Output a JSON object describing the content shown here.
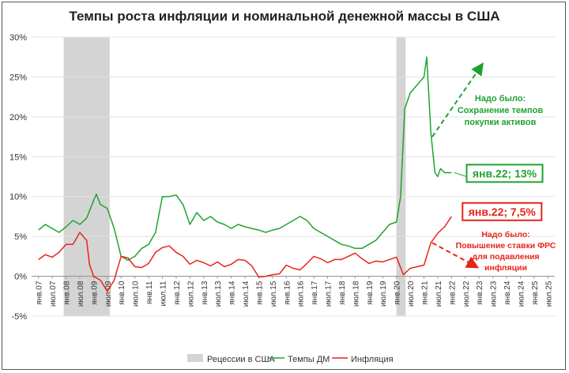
{
  "chart_data": {
    "type": "line",
    "title": "Темпы роста инфляции и номинальной денежной массы в США",
    "y_ticks": [
      "30%",
      "25%",
      "20%",
      "15%",
      "10%",
      "5%",
      "0%",
      "-5%"
    ],
    "ylim": [
      -5,
      30
    ],
    "x_labels": [
      "янв.07",
      "июл.07",
      "янв.08",
      "июл.08",
      "янв.09",
      "июл.09",
      "янв.10",
      "июл.10",
      "янв.11",
      "июл.11",
      "янв.12",
      "июл.12",
      "янв.13",
      "июл.13",
      "янв.14",
      "июл.14",
      "янв.15",
      "июл.15",
      "янв.16",
      "июл.16",
      "янв.17",
      "июл.17",
      "янв.18",
      "июл.18",
      "янв.19",
      "июл.19",
      "янв.20",
      "июл.20",
      "янв.21",
      "июл.21",
      "янв.22",
      "июл.22",
      "янв.23",
      "июл.23",
      "янв.24",
      "июл.24",
      "янв.25",
      "июл.25"
    ],
    "grid": true,
    "legend_position": "bottom",
    "colors": {
      "money": "#1fa32f",
      "inflation": "#e8231a",
      "recession": "#d4d4d4"
    },
    "recessions": [
      [
        "янв.08",
        "июл.09"
      ],
      [
        "фев.20",
        "апр.20"
      ]
    ],
    "series": [
      {
        "name": "Темпы ДМ",
        "points": [
          [
            2007.0,
            5.8
          ],
          [
            2007.25,
            6.5
          ],
          [
            2007.5,
            6.0
          ],
          [
            2007.75,
            5.5
          ],
          [
            2008.0,
            6.2
          ],
          [
            2008.25,
            7.0
          ],
          [
            2008.5,
            6.5
          ],
          [
            2008.75,
            7.3
          ],
          [
            2009.0,
            9.5
          ],
          [
            2009.1,
            10.3
          ],
          [
            2009.25,
            9.0
          ],
          [
            2009.5,
            8.5
          ],
          [
            2009.75,
            6.0
          ],
          [
            2010.0,
            2.5
          ],
          [
            2010.25,
            2.0
          ],
          [
            2010.5,
            2.5
          ],
          [
            2010.75,
            3.5
          ],
          [
            2011.0,
            4.0
          ],
          [
            2011.25,
            5.5
          ],
          [
            2011.5,
            10.0
          ],
          [
            2011.75,
            10.0
          ],
          [
            2012.0,
            10.2
          ],
          [
            2012.25,
            9.0
          ],
          [
            2012.5,
            6.5
          ],
          [
            2012.75,
            8.0
          ],
          [
            2013.0,
            7.0
          ],
          [
            2013.25,
            7.5
          ],
          [
            2013.5,
            6.8
          ],
          [
            2013.75,
            6.5
          ],
          [
            2014.0,
            6.0
          ],
          [
            2014.25,
            6.5
          ],
          [
            2014.5,
            6.2
          ],
          [
            2014.75,
            6.0
          ],
          [
            2015.0,
            5.8
          ],
          [
            2015.25,
            5.5
          ],
          [
            2015.5,
            5.8
          ],
          [
            2015.75,
            6.0
          ],
          [
            2016.0,
            6.5
          ],
          [
            2016.25,
            7.0
          ],
          [
            2016.5,
            7.5
          ],
          [
            2016.75,
            7.0
          ],
          [
            2017.0,
            6.0
          ],
          [
            2017.25,
            5.5
          ],
          [
            2017.5,
            5.0
          ],
          [
            2017.75,
            4.5
          ],
          [
            2018.0,
            4.0
          ],
          [
            2018.25,
            3.8
          ],
          [
            2018.5,
            3.5
          ],
          [
            2018.75,
            3.5
          ],
          [
            2019.0,
            4.0
          ],
          [
            2019.25,
            4.5
          ],
          [
            2019.5,
            5.5
          ],
          [
            2019.75,
            6.5
          ],
          [
            2020.0,
            6.8
          ],
          [
            2020.15,
            10.0
          ],
          [
            2020.3,
            21.0
          ],
          [
            2020.5,
            23.0
          ],
          [
            2020.75,
            24.0
          ],
          [
            2021.0,
            25.0
          ],
          [
            2021.1,
            27.5
          ],
          [
            2021.25,
            18.0
          ],
          [
            2021.4,
            13.0
          ],
          [
            2021.5,
            12.5
          ],
          [
            2021.6,
            13.5
          ],
          [
            2021.75,
            13.0
          ],
          [
            2022.0,
            13.0
          ]
        ]
      },
      {
        "name": "Инфляция",
        "points": [
          [
            2007.0,
            2.1
          ],
          [
            2007.25,
            2.7
          ],
          [
            2007.5,
            2.4
          ],
          [
            2007.75,
            3.0
          ],
          [
            2008.0,
            4.0
          ],
          [
            2008.25,
            4.0
          ],
          [
            2008.5,
            5.5
          ],
          [
            2008.75,
            4.5
          ],
          [
            2008.85,
            1.5
          ],
          [
            2009.0,
            0.0
          ],
          [
            2009.25,
            -0.5
          ],
          [
            2009.5,
            -1.9
          ],
          [
            2009.75,
            -0.5
          ],
          [
            2010.0,
            2.5
          ],
          [
            2010.25,
            2.3
          ],
          [
            2010.5,
            1.2
          ],
          [
            2010.75,
            1.1
          ],
          [
            2011.0,
            1.6
          ],
          [
            2011.25,
            3.0
          ],
          [
            2011.5,
            3.6
          ],
          [
            2011.75,
            3.8
          ],
          [
            2012.0,
            3.0
          ],
          [
            2012.25,
            2.5
          ],
          [
            2012.5,
            1.5
          ],
          [
            2012.75,
            2.0
          ],
          [
            2013.0,
            1.7
          ],
          [
            2013.25,
            1.3
          ],
          [
            2013.5,
            1.8
          ],
          [
            2013.75,
            1.2
          ],
          [
            2014.0,
            1.5
          ],
          [
            2014.25,
            2.1
          ],
          [
            2014.5,
            2.0
          ],
          [
            2014.75,
            1.3
          ],
          [
            2015.0,
            -0.1
          ],
          [
            2015.25,
            0.0
          ],
          [
            2015.5,
            0.2
          ],
          [
            2015.75,
            0.3
          ],
          [
            2016.0,
            1.4
          ],
          [
            2016.25,
            1.0
          ],
          [
            2016.5,
            0.8
          ],
          [
            2016.75,
            1.6
          ],
          [
            2017.0,
            2.5
          ],
          [
            2017.25,
            2.2
          ],
          [
            2017.5,
            1.7
          ],
          [
            2017.75,
            2.1
          ],
          [
            2018.0,
            2.1
          ],
          [
            2018.25,
            2.5
          ],
          [
            2018.5,
            2.9
          ],
          [
            2018.75,
            2.2
          ],
          [
            2019.0,
            1.6
          ],
          [
            2019.25,
            1.9
          ],
          [
            2019.5,
            1.8
          ],
          [
            2019.75,
            2.1
          ],
          [
            2020.0,
            2.4
          ],
          [
            2020.25,
            0.2
          ],
          [
            2020.5,
            1.0
          ],
          [
            2020.75,
            1.2
          ],
          [
            2021.0,
            1.4
          ],
          [
            2021.25,
            4.2
          ],
          [
            2021.5,
            5.4
          ],
          [
            2021.75,
            6.2
          ],
          [
            2022.0,
            7.5
          ]
        ]
      }
    ],
    "annotations": {
      "money_label": "янв.22; 13%",
      "inflation_label": "янв.22; 7,5%",
      "green_note": [
        "Надо было:",
        "Сохранение темпов",
        "покупки активов"
      ],
      "red_note": [
        "Надо было:",
        "Повышение ставки ФРС",
        "для подавления",
        "инфляции"
      ]
    },
    "legend": [
      "Рецессии в США",
      "Темпы ДМ",
      "Инфляция"
    ]
  }
}
